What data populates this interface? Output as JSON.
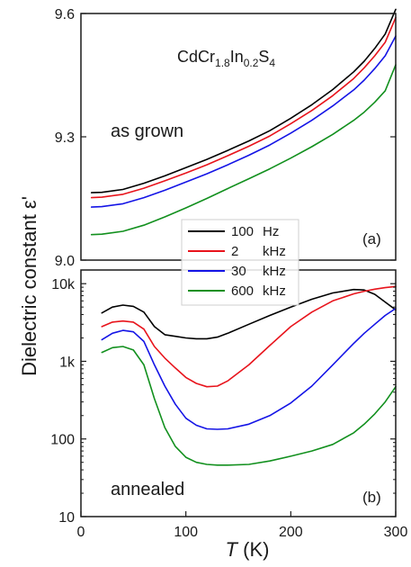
{
  "figure": {
    "y_axis_title": "Dielectric constant ε'",
    "x_axis_title_symbol": "T",
    "x_axis_title_unit": " (K)"
  },
  "legend": {
    "entries": [
      {
        "value": "100",
        "unit": "Hz",
        "color": "#000000"
      },
      {
        "value": "2",
        "unit": "kHz",
        "color": "#e8141c"
      },
      {
        "value": "30",
        "unit": "kHz",
        "color": "#1414e6"
      },
      {
        "value": "600",
        "unit": "kHz",
        "color": "#12901e"
      }
    ]
  },
  "chart_data": [
    {
      "type": "line",
      "panel_label": "(a)",
      "formula": {
        "base1": "CdCr",
        "sub1": "1.8",
        "base2": "In",
        "sub2": "0.2",
        "base3": "S",
        "sub3": "4"
      },
      "annotation": "as grown",
      "xlim": [
        0,
        300
      ],
      "ylim": [
        9.0,
        9.6
      ],
      "y_scale": "linear",
      "yticks": [
        9.0,
        9.3,
        9.6
      ],
      "ytick_labels": [
        "9.0",
        "9.3",
        "9.6"
      ],
      "x": [
        10,
        20,
        40,
        60,
        80,
        100,
        120,
        140,
        160,
        180,
        200,
        220,
        240,
        260,
        270,
        280,
        290,
        300
      ],
      "series": [
        {
          "name": "100 Hz",
          "color": "#000000",
          "values": [
            9.164,
            9.165,
            9.172,
            9.187,
            9.205,
            9.225,
            9.245,
            9.267,
            9.29,
            9.315,
            9.345,
            9.378,
            9.415,
            9.458,
            9.484,
            9.515,
            9.55,
            9.61
          ]
        },
        {
          "name": "2 kHz",
          "color": "#e8141c",
          "values": [
            9.152,
            9.153,
            9.16,
            9.175,
            9.193,
            9.212,
            9.232,
            9.254,
            9.277,
            9.302,
            9.332,
            9.364,
            9.4,
            9.442,
            9.468,
            9.497,
            9.53,
            9.59
          ]
        },
        {
          "name": "30 kHz",
          "color": "#1414e6",
          "values": [
            9.129,
            9.13,
            9.137,
            9.152,
            9.17,
            9.19,
            9.21,
            9.232,
            9.255,
            9.28,
            9.309,
            9.34,
            9.375,
            9.414,
            9.438,
            9.466,
            9.497,
            9.545
          ]
        },
        {
          "name": "600 kHz",
          "color": "#12901e",
          "values": [
            9.062,
            9.063,
            9.07,
            9.085,
            9.105,
            9.127,
            9.15,
            9.174,
            9.198,
            9.222,
            9.248,
            9.276,
            9.306,
            9.34,
            9.36,
            9.384,
            9.412,
            9.475
          ]
        }
      ]
    },
    {
      "type": "line",
      "panel_label": "(b)",
      "annotation": "annealed",
      "xlim": [
        0,
        300
      ],
      "ylim": [
        10,
        15000
      ],
      "y_scale": "log",
      "yticks": [
        10,
        100,
        1000,
        10000
      ],
      "ytick_labels": [
        "10",
        "100",
        "1k",
        "10k"
      ],
      "xticks": [
        0,
        100,
        200,
        300
      ],
      "xtick_labels": [
        "0",
        "100",
        "200",
        "300"
      ],
      "x": [
        20,
        30,
        40,
        50,
        60,
        70,
        80,
        90,
        100,
        110,
        120,
        130,
        140,
        160,
        180,
        200,
        220,
        240,
        260,
        270,
        280,
        290,
        300
      ],
      "series": [
        {
          "name": "100 Hz",
          "color": "#000000",
          "values": [
            4200,
            5000,
            5300,
            5100,
            4300,
            2800,
            2200,
            2100,
            2000,
            1950,
            1950,
            2050,
            2300,
            3000,
            3900,
            5000,
            6300,
            7600,
            8400,
            8300,
            7300,
            5800,
            4600
          ]
        },
        {
          "name": "2 kHz",
          "color": "#e8141c",
          "values": [
            2800,
            3200,
            3300,
            3200,
            2600,
            1550,
            1100,
            820,
            620,
            520,
            470,
            480,
            560,
            900,
            1600,
            2800,
            4300,
            6000,
            7400,
            8000,
            8500,
            8900,
            9200
          ]
        },
        {
          "name": "30 kHz",
          "color": "#1414e6",
          "values": [
            1900,
            2300,
            2500,
            2400,
            1800,
            900,
            480,
            280,
            185,
            150,
            135,
            133,
            135,
            155,
            200,
            290,
            480,
            900,
            1700,
            2300,
            3000,
            3900,
            4800
          ]
        },
        {
          "name": "600 kHz",
          "color": "#12901e",
          "values": [
            1300,
            1500,
            1550,
            1400,
            900,
            330,
            140,
            80,
            58,
            50,
            47,
            46,
            46,
            47,
            52,
            60,
            70,
            85,
            120,
            155,
            210,
            300,
            470
          ]
        }
      ]
    }
  ]
}
